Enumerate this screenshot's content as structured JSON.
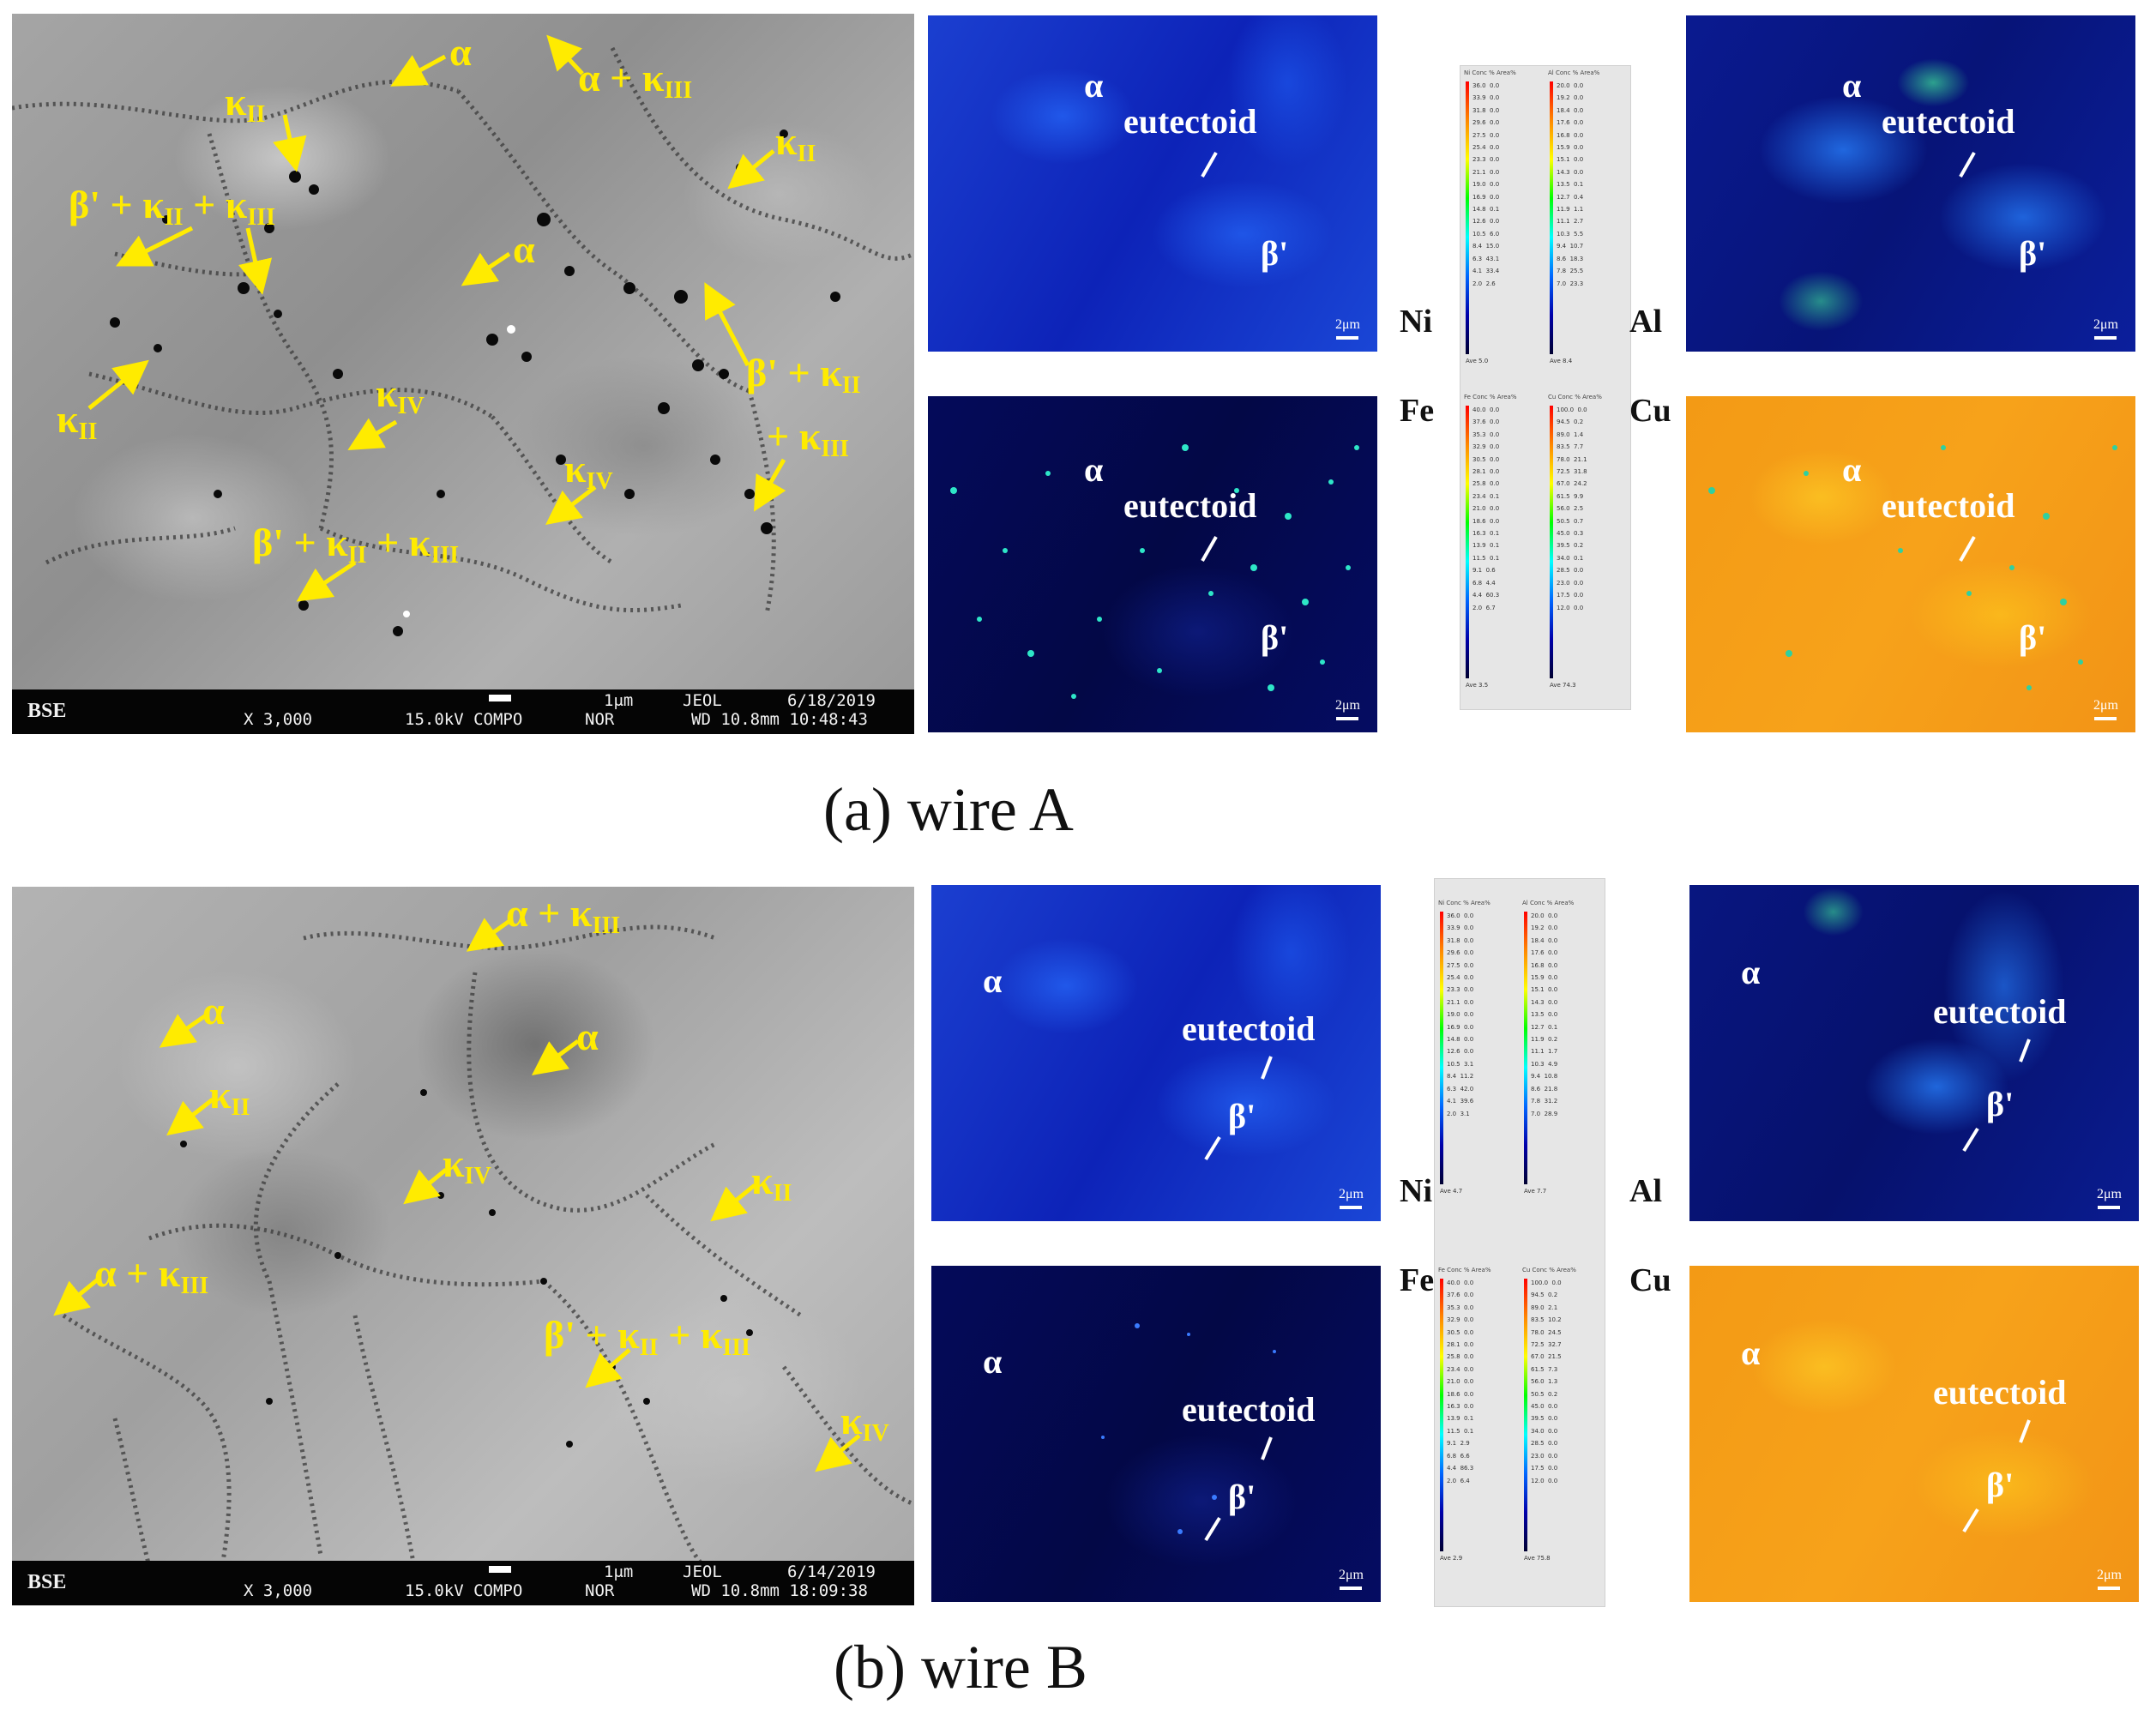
{
  "panel_a": {
    "caption": "(a)  wire A",
    "sem": {
      "detector": "BSE",
      "magnification": "X 3,000",
      "voltage_mode": "15.0kV COMPO",
      "nor": "NOR",
      "scale": "1μm",
      "maker": "JEOL",
      "date": "6/18/2019",
      "wd_time": "WD 10.8mm 10:48:43"
    },
    "annotations": {
      "a1": {
        "base": "α",
        "sub": ""
      },
      "a2": {
        "base": "α + κ",
        "sub": "III"
      },
      "a3": {
        "base": "κ",
        "sub": "II"
      },
      "a4": {
        "base": "κ",
        "sub": "II"
      },
      "a5": {
        "base": "β' + κ",
        "sub": "II",
        "base2": " + κ",
        "sub2": "III"
      },
      "a6": {
        "base": "α",
        "sub": ""
      },
      "a7": {
        "base": "β' + κ",
        "sub": "II"
      },
      "a8": {
        "base": "+ κ",
        "sub": "III"
      },
      "a9": {
        "base": "κ",
        "sub": "II"
      },
      "a10": {
        "base": "κ",
        "sub": "IV"
      },
      "a11": {
        "base": "κ",
        "sub": "IV"
      },
      "a12": {
        "base": "β' + κ",
        "sub": "II",
        "base2": " + κ",
        "sub2": "III"
      }
    },
    "maps": {
      "ni": {
        "alpha": "α",
        "eutectoid": "eutectoid",
        "beta": "β'",
        "scale": "2μm",
        "element": "Ni"
      },
      "al": {
        "alpha": "α",
        "eutectoid": "eutectoid",
        "beta": "β'",
        "scale": "2μm",
        "element": "Al"
      },
      "fe": {
        "alpha": "α",
        "eutectoid": "eutectoid",
        "beta": "β'",
        "scale": "2μm",
        "element": "Fe"
      },
      "cu": {
        "alpha": "α",
        "eutectoid": "eutectoid",
        "beta": "β'",
        "scale": "2μm",
        "element": "Cu"
      }
    },
    "scales": {
      "ni": {
        "header": "Ni Conc % Area%",
        "values": "36.0  0.0\n33.9  0.0\n31.8  0.0\n29.6  0.0\n27.5  0.0\n25.4  0.0\n23.3  0.0\n21.1  0.0\n19.0  0.0\n16.9  0.0\n14.8  0.1\n12.6  0.0\n10.5  6.0\n8.4  15.0\n6.3  43.1\n4.1  33.4\n2.0  2.6",
        "ave": "Ave 5.0"
      },
      "al": {
        "header": "Al Conc % Area%",
        "values": "20.0  0.0\n19.2  0.0\n18.4  0.0\n17.6  0.0\n16.8  0.0\n15.9  0.0\n15.1  0.0\n14.3  0.0\n13.5  0.1\n12.7  0.4\n11.9  1.1\n11.1  2.7\n10.3  5.5\n9.4  10.7\n8.6  18.3\n7.8  25.5\n7.0  23.3",
        "ave": "Ave 8.4"
      },
      "fe": {
        "header": "Fe Conc % Area%",
        "values": "40.0  0.0\n37.6  0.0\n35.3  0.0\n32.9  0.0\n30.5  0.0\n28.1  0.0\n25.8  0.0\n23.4  0.1\n21.0  0.0\n18.6  0.0\n16.3  0.1\n13.9  0.1\n11.5  0.1\n9.1  0.6\n6.8  4.4\n4.4  60.3\n2.0  6.7",
        "ave": "Ave 3.5"
      },
      "cu": {
        "header": "Cu Conc % Area%",
        "values": "100.0  0.0\n94.5  0.2\n89.0  1.4\n83.5  7.7\n78.0  21.1\n72.5  31.8\n67.0  24.2\n61.5  9.9\n56.0  2.5\n50.5  0.7\n45.0  0.3\n39.5  0.2\n34.0  0.1\n28.5  0.0\n23.0  0.0\n17.5  0.0\n12.0  0.0",
        "ave": "Ave 74.3"
      }
    }
  },
  "panel_b": {
    "caption": "(b) wire B",
    "sem": {
      "detector": "BSE",
      "magnification": "X 3,000",
      "voltage_mode": "15.0kV COMPO",
      "nor": "NOR",
      "scale": "1μm",
      "maker": "JEOL",
      "date": "6/14/2019",
      "wd_time": "WD 10.8mm 18:09:38"
    },
    "annotations": {
      "b1": {
        "base": "α + κ",
        "sub": "III"
      },
      "b2": {
        "base": "α",
        "sub": ""
      },
      "b3": {
        "base": "α",
        "sub": ""
      },
      "b4": {
        "base": "κ",
        "sub": "II"
      },
      "b5": {
        "base": "κ",
        "sub": "IV"
      },
      "b6": {
        "base": "κ",
        "sub": "II"
      },
      "b7": {
        "base": "α + κ",
        "sub": "III"
      },
      "b8": {
        "base": "β' + κ",
        "sub": "II",
        "base2": " + κ",
        "sub2": "III"
      },
      "b9": {
        "base": "κ",
        "sub": "IV"
      }
    },
    "maps": {
      "ni": {
        "alpha": "α",
        "eutectoid": "eutectoid",
        "beta": "β'",
        "scale": "2μm",
        "element": "Ni"
      },
      "al": {
        "alpha": "α",
        "eutectoid": "eutectoid",
        "beta": "β'",
        "scale": "2μm",
        "element": "Al"
      },
      "fe": {
        "alpha": "α",
        "eutectoid": "eutectoid",
        "beta": "β'",
        "scale": "2μm",
        "element": "Fe"
      },
      "cu": {
        "alpha": "α",
        "eutectoid": "eutectoid",
        "beta": "β'",
        "scale": "2μm",
        "element": "Cu"
      }
    },
    "scales": {
      "ni": {
        "header": "Ni Conc % Area%",
        "values": "36.0  0.0\n33.9  0.0\n31.8  0.0\n29.6  0.0\n27.5  0.0\n25.4  0.0\n23.3  0.0\n21.1  0.0\n19.0  0.0\n16.9  0.0\n14.8  0.0\n12.6  0.0\n10.5  3.1\n8.4  11.2\n6.3  42.0\n4.1  39.6\n2.0  3.1",
        "ave": "Ave 4.7"
      },
      "al": {
        "header": "Al Conc % Area%",
        "values": "20.0  0.0\n19.2  0.0\n18.4  0.0\n17.6  0.0\n16.8  0.0\n15.9  0.0\n15.1  0.0\n14.3  0.0\n13.5  0.0\n12.7  0.1\n11.9  0.2\n11.1  1.7\n10.3  4.9\n9.4  10.8\n8.6  21.8\n7.8  31.2\n7.0  28.9",
        "ave": "Ave 7.7"
      },
      "fe": {
        "header": "Fe Conc % Area%",
        "values": "40.0  0.0\n37.6  0.0\n35.3  0.0\n32.9  0.0\n30.5  0.0\n28.1  0.0\n25.8  0.0\n23.4  0.0\n21.0  0.0\n18.6  0.0\n16.3  0.0\n13.9  0.1\n11.5  0.1\n9.1  2.9\n6.8  6.6\n4.4  86.3\n2.0  6.4",
        "ave": "Ave 2.9"
      },
      "cu": {
        "header": "Cu Conc % Area%",
        "values": "100.0  0.0\n94.5  0.2\n89.0  2.1\n83.5  10.2\n78.0  24.5\n72.5  32.7\n67.0  21.5\n61.5  7.3\n56.0  1.3\n50.5  0.2\n45.0  0.0\n39.5  0.0\n34.0  0.0\n28.5  0.0\n23.0  0.0\n17.5  0.0\n12.0  0.0",
        "ave": "Ave 75.8"
      }
    }
  },
  "colors": {
    "annotation": "#ffeb00",
    "map_label": "#ffffff",
    "sem_bar": "#050505"
  }
}
